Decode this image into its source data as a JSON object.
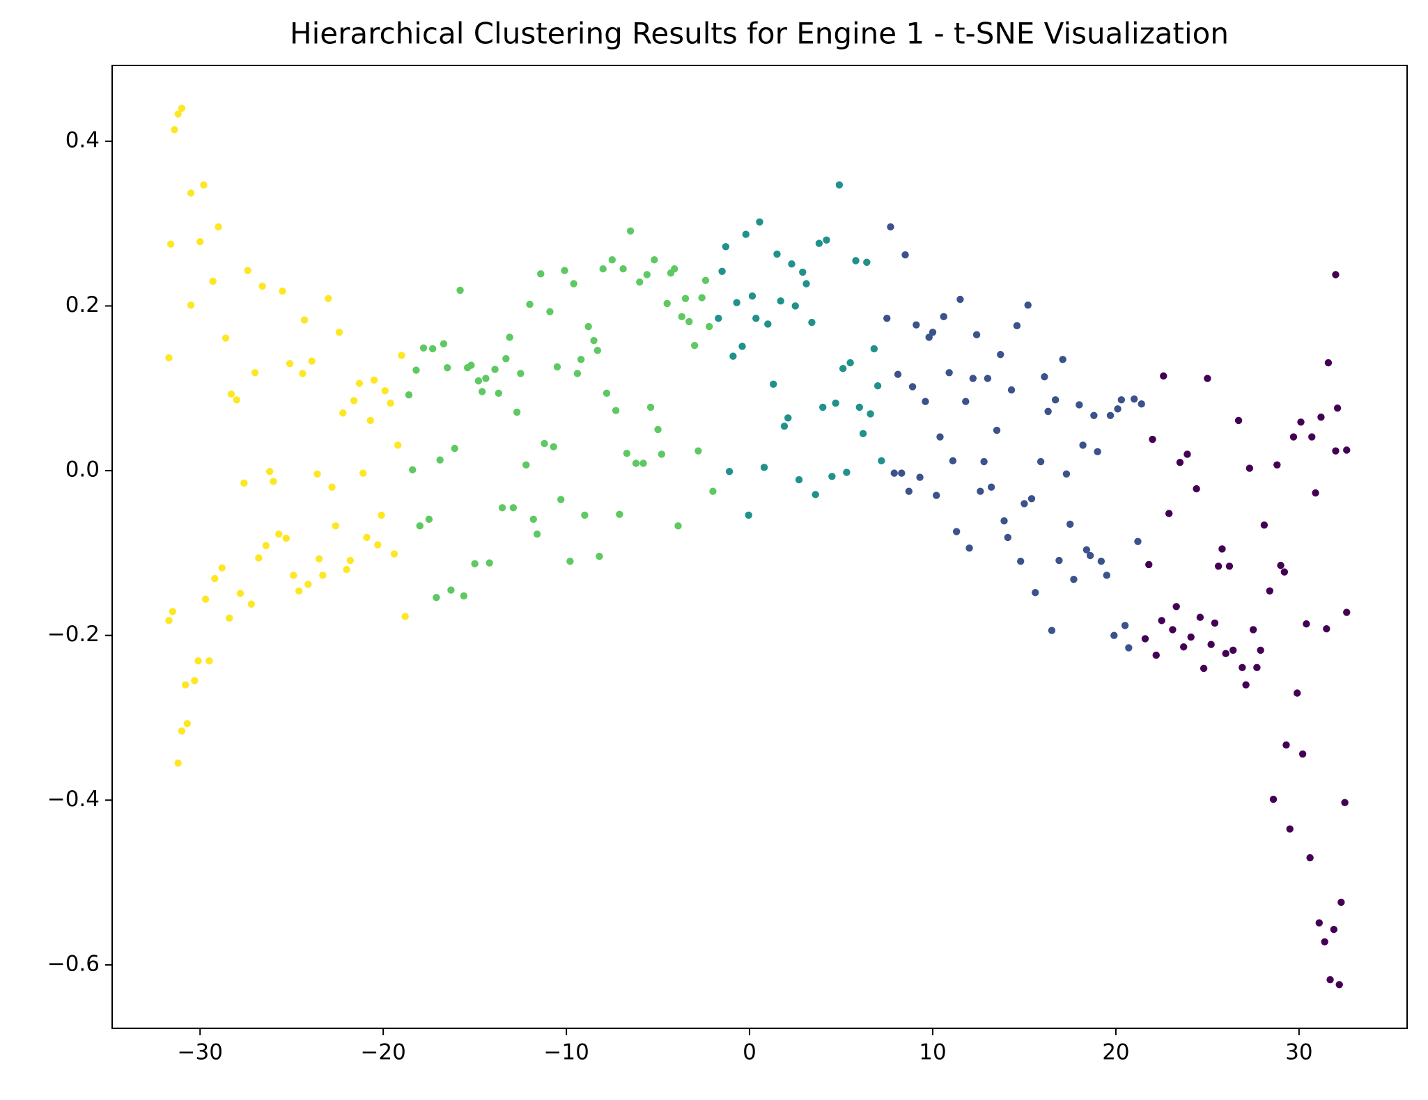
{
  "chart_data": {
    "type": "scatter",
    "title": "Hierarchical Clustering Results for Engine 1 - t-SNE Visualization",
    "xlim": [
      -34.8,
      35.9
    ],
    "ylim": [
      -0.677,
      0.492
    ],
    "xticks": [
      {
        "value": -30,
        "label": "−30"
      },
      {
        "value": -20,
        "label": "−20"
      },
      {
        "value": -10,
        "label": "−10"
      },
      0,
      10,
      20,
      30
    ],
    "yticks": [
      {
        "value": -0.6,
        "label": "−0.6"
      },
      {
        "value": -0.4,
        "label": "−0.4"
      },
      {
        "value": -0.2,
        "label": "−0.2"
      },
      {
        "value": 0,
        "label": "0.0"
      },
      0.2,
      0.4
    ],
    "series": [
      {
        "color": "#fde725",
        "x": [
          -31.6,
          -31.7,
          -31.7,
          -31.5,
          -31.4,
          -31.2,
          -31.0,
          -31.2,
          -31.0,
          -30.7,
          -30.8,
          -30.3,
          -30.1,
          -29.5,
          -29.7,
          -29.2,
          -28.8,
          -28.4,
          -27.8,
          -27.2,
          -30.5,
          -29.8,
          -30.0,
          -30.5,
          -29.3,
          -29.0,
          -28.6,
          -28.3,
          -28.0,
          -27.6,
          -27.4,
          -27.0,
          -26.8,
          -26.6,
          -26.4,
          -26.2,
          -26.0,
          -25.7,
          -25.5,
          -25.3,
          -25.1,
          -24.9,
          -24.6,
          -24.4,
          -24.3,
          -24.1,
          -23.9,
          -23.6,
          -23.5,
          -23.3,
          -23.0,
          -22.8,
          -22.6,
          -22.4,
          -22.2,
          -22.0,
          -21.8,
          -21.6,
          -21.3,
          -21.1,
          -20.9,
          -20.7,
          -20.5,
          -20.3,
          -20.1,
          -19.9,
          -19.6,
          -19.4,
          -19.2,
          -19.0,
          -18.8
        ],
        "y": [
          0.275,
          0.137,
          -0.182,
          -0.171,
          0.414,
          0.433,
          0.44,
          -0.355,
          -0.316,
          -0.307,
          -0.26,
          -0.255,
          -0.231,
          -0.231,
          -0.156,
          -0.131,
          -0.118,
          -0.179,
          -0.149,
          -0.162,
          0.337,
          0.347,
          0.278,
          0.201,
          0.23,
          0.296,
          0.161,
          0.093,
          0.086,
          -0.015,
          0.243,
          0.119,
          -0.106,
          0.224,
          -0.091,
          -0.001,
          -0.013,
          -0.077,
          0.218,
          -0.082,
          0.13,
          -0.127,
          -0.146,
          0.118,
          0.183,
          -0.138,
          0.133,
          -0.004,
          -0.107,
          -0.127,
          0.209,
          -0.02,
          -0.067,
          0.168,
          0.07,
          -0.12,
          -0.109,
          0.085,
          0.106,
          -0.003,
          -0.081,
          0.061,
          0.11,
          -0.09,
          -0.054,
          0.097,
          0.082,
          -0.101,
          0.031,
          0.14,
          -0.177
        ]
      },
      {
        "color": "#5ec962",
        "x": [
          -18.6,
          -18.4,
          -18.2,
          -18.0,
          -17.8,
          -17.5,
          -17.3,
          -17.1,
          -16.9,
          -16.7,
          -16.5,
          -16.3,
          -16.1,
          -15.8,
          -15.6,
          -15.4,
          -15.2,
          -15.0,
          -14.8,
          -14.6,
          -14.4,
          -14.2,
          -13.9,
          -13.7,
          -13.5,
          -13.3,
          -13.1,
          -12.9,
          -12.7,
          -12.5,
          -12.2,
          -12.0,
          -11.8,
          -11.6,
          -11.4,
          -11.2,
          -10.9,
          -10.7,
          -10.5,
          -10.3,
          -10.1,
          -9.8,
          -9.6,
          -9.4,
          -9.2,
          -9.0,
          -8.8,
          -8.5,
          -8.3,
          -8.2,
          -8.0,
          -7.8,
          -7.5,
          -7.3,
          -7.1,
          -6.9,
          -6.7,
          -6.5,
          -6.2,
          -6.0,
          -5.8,
          -5.6,
          -5.4,
          -5.2,
          -5.0,
          -4.8,
          -4.5,
          -4.3,
          -4.1,
          -3.9,
          -3.7,
          -3.5,
          -3.3,
          -3.0,
          -2.8,
          -2.6,
          -2.4,
          -2.2,
          -2.0
        ],
        "y": [
          0.092,
          0.001,
          0.122,
          -0.067,
          0.149,
          -0.059,
          0.148,
          -0.154,
          0.013,
          0.154,
          0.125,
          -0.145,
          0.027,
          0.219,
          -0.152,
          0.125,
          0.128,
          -0.113,
          0.109,
          0.096,
          0.112,
          -0.112,
          0.123,
          0.094,
          -0.045,
          0.136,
          0.162,
          -0.045,
          0.071,
          0.118,
          0.007,
          0.202,
          -0.059,
          -0.077,
          0.239,
          0.033,
          0.193,
          0.029,
          0.126,
          -0.035,
          0.243,
          -0.11,
          0.227,
          0.118,
          0.135,
          -0.054,
          0.175,
          0.158,
          0.146,
          -0.104,
          0.245,
          0.094,
          0.256,
          0.073,
          -0.053,
          0.245,
          0.021,
          0.291,
          0.009,
          0.229,
          0.009,
          0.238,
          0.077,
          0.256,
          0.05,
          0.02,
          0.203,
          0.24,
          0.245,
          -0.067,
          0.187,
          0.209,
          0.181,
          0.152,
          0.024,
          0.21,
          0.231,
          0.175,
          -0.025
        ]
      },
      {
        "color": "#21918c",
        "x": [
          -1.7,
          -1.5,
          -1.3,
          -1.1,
          -0.9,
          -0.7,
          -0.4,
          -0.2,
          -0.05,
          0.15,
          0.35,
          0.55,
          0.8,
          1.0,
          1.3,
          1.5,
          1.7,
          1.9,
          2.1,
          2.3,
          2.5,
          2.7,
          2.9,
          3.1,
          3.4,
          3.6,
          3.8,
          4.0,
          4.2,
          4.5,
          4.7,
          4.9,
          5.1,
          5.3,
          5.5,
          5.8,
          6.0,
          6.2,
          6.4,
          6.6,
          6.8,
          7.0,
          7.2
        ],
        "y": [
          0.185,
          0.242,
          0.272,
          -0.001,
          0.139,
          0.204,
          0.151,
          0.287,
          -0.054,
          0.212,
          0.185,
          0.302,
          0.004,
          0.178,
          0.105,
          0.263,
          0.206,
          0.054,
          0.064,
          0.251,
          0.2,
          -0.011,
          0.241,
          0.227,
          0.18,
          -0.029,
          0.276,
          0.077,
          0.28,
          -0.007,
          0.082,
          0.347,
          0.124,
          -0.002,
          0.131,
          0.255,
          0.077,
          0.045,
          0.253,
          0.069,
          0.148,
          0.103,
          0.012
        ]
      },
      {
        "color": "#3b528b",
        "x": [
          7.5,
          7.7,
          7.9,
          8.1,
          8.3,
          8.5,
          8.7,
          8.9,
          9.1,
          9.3,
          9.6,
          9.8,
          10.0,
          10.2,
          10.4,
          10.6,
          10.9,
          11.1,
          11.3,
          11.5,
          11.8,
          12.0,
          12.2,
          12.4,
          12.6,
          12.8,
          13.0,
          13.2,
          13.5,
          13.7,
          13.9,
          14.1,
          14.3,
          14.6,
          14.8,
          15.0,
          15.2,
          15.4,
          15.6,
          15.9,
          16.1,
          16.3,
          16.5,
          16.7,
          16.9,
          17.1,
          17.3,
          17.5,
          17.7,
          18.0,
          18.2,
          18.4,
          18.6,
          18.8,
          19.0,
          19.2,
          19.5,
          19.7,
          19.9,
          20.1,
          20.3,
          20.5,
          20.7,
          21.0,
          21.2,
          21.4
        ],
        "y": [
          0.185,
          0.296,
          -0.003,
          0.117,
          -0.003,
          0.262,
          -0.025,
          0.102,
          0.177,
          -0.008,
          0.084,
          0.162,
          0.168,
          -0.03,
          0.041,
          0.187,
          0.119,
          0.012,
          -0.074,
          0.208,
          0.084,
          -0.094,
          0.112,
          0.165,
          -0.025,
          0.011,
          0.112,
          -0.02,
          0.049,
          0.141,
          -0.061,
          -0.081,
          0.098,
          0.176,
          -0.11,
          -0.04,
          0.201,
          -0.034,
          -0.148,
          0.011,
          0.114,
          0.072,
          -0.194,
          0.086,
          -0.109,
          0.135,
          -0.004,
          -0.065,
          -0.132,
          0.08,
          0.031,
          -0.096,
          -0.103,
          0.067,
          0.023,
          -0.11,
          -0.127,
          0.067,
          -0.2,
          0.075,
          0.086,
          -0.188,
          -0.215,
          0.087,
          -0.086,
          0.081
        ]
      },
      {
        "color": "#440154",
        "x": [
          21.6,
          21.8,
          22.0,
          22.2,
          22.5,
          22.6,
          22.9,
          23.1,
          23.3,
          23.5,
          23.7,
          23.9,
          24.1,
          24.4,
          24.6,
          24.8,
          25.0,
          25.2,
          25.4,
          25.6,
          25.8,
          26.0,
          26.2,
          26.4,
          26.7,
          26.9,
          27.1,
          27.3,
          27.5,
          27.7,
          27.9,
          28.1,
          28.4,
          28.6,
          28.8,
          29.0,
          29.2,
          29.3,
          29.5,
          29.7,
          29.9,
          30.1,
          30.2,
          30.4,
          30.6,
          30.7,
          30.9,
          31.1,
          31.2,
          31.4,
          31.5,
          31.6,
          31.7,
          31.9,
          32.0,
          32.0,
          32.1,
          32.2,
          32.3,
          32.5,
          32.6,
          32.6
        ],
        "y": [
          -0.204,
          -0.114,
          0.038,
          -0.224,
          -0.182,
          0.115,
          -0.052,
          -0.193,
          -0.165,
          0.01,
          -0.214,
          0.02,
          -0.202,
          -0.022,
          -0.178,
          -0.24,
          0.112,
          -0.211,
          -0.185,
          -0.116,
          -0.095,
          -0.222,
          -0.116,
          -0.218,
          0.061,
          -0.239,
          -0.26,
          0.003,
          -0.193,
          -0.239,
          -0.218,
          -0.066,
          -0.146,
          -0.399,
          0.007,
          -0.115,
          -0.123,
          -0.333,
          -0.435,
          0.041,
          -0.27,
          0.059,
          -0.344,
          -0.186,
          -0.47,
          0.041,
          -0.027,
          -0.549,
          0.065,
          -0.572,
          -0.192,
          0.131,
          -0.618,
          -0.557,
          0.024,
          0.238,
          0.076,
          -0.624,
          -0.524,
          -0.403,
          0.025,
          -0.172
        ]
      }
    ]
  }
}
